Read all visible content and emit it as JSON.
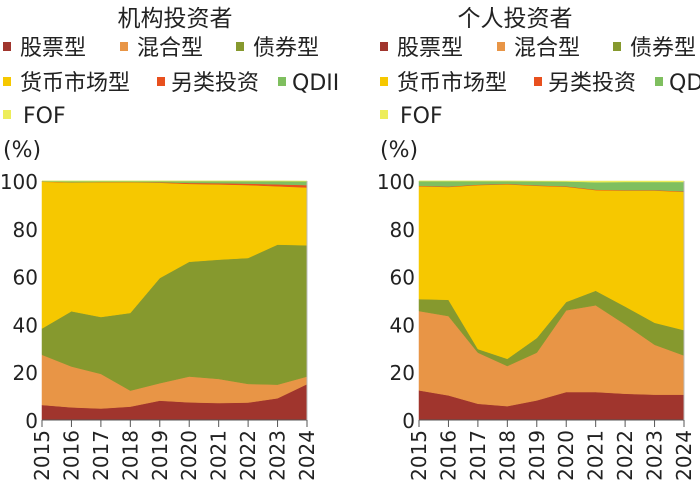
{
  "chart_data": [
    {
      "type": "area",
      "stacked": true,
      "title": "机构投资者",
      "ylabel": "(%)",
      "ylim": [
        0,
        100
      ],
      "yticks": [
        "0",
        "20",
        "40",
        "60",
        "80",
        "100"
      ],
      "categories": [
        "2015",
        "2016",
        "2017",
        "2018",
        "2019",
        "2020",
        "2021",
        "2022",
        "2023",
        "2024"
      ],
      "legend_position": "top",
      "grid": false,
      "series": [
        {
          "name": "股票型",
          "color": "#a0352d",
          "values": [
            6.3,
            5.3,
            4.8,
            5.6,
            8.1,
            7.4,
            7.1,
            7.3,
            9.1,
            15.0
          ]
        },
        {
          "name": "混合型",
          "color": "#e89546",
          "values": [
            21.0,
            17.1,
            14.5,
            6.7,
            7.3,
            10.8,
            10.1,
            7.8,
            5.7,
            3.2
          ]
        },
        {
          "name": "债券型",
          "color": "#86992e",
          "values": [
            11.0,
            23.1,
            23.8,
            32.5,
            44.0,
            48.0,
            49.9,
            52.7,
            58.6,
            54.9
          ]
        },
        {
          "name": "货币市场型",
          "color": "#f6c800",
          "values": [
            61.4,
            53.9,
            56.4,
            54.7,
            39.9,
            32.6,
            31.5,
            30.5,
            24.4,
            24.2
          ]
        },
        {
          "name": "另类投资",
          "color": "#e8501e",
          "values": [
            0.1,
            0.1,
            0.1,
            0.1,
            0.2,
            0.4,
            0.5,
            0.6,
            0.8,
            1.0
          ]
        },
        {
          "name": "QDII",
          "color": "#7fbf5f",
          "values": [
            0.2,
            0.5,
            0.4,
            0.4,
            0.5,
            0.8,
            0.9,
            1.1,
            1.4,
            1.6
          ]
        },
        {
          "name": "FOF",
          "color": "#eded5a",
          "values": [
            0,
            0,
            0,
            0,
            0,
            0,
            0,
            0,
            0,
            0.1
          ]
        }
      ]
    },
    {
      "type": "area",
      "stacked": true,
      "title": "个人投资者",
      "ylabel": "(%)",
      "ylim": [
        0,
        100
      ],
      "yticks": [
        "0",
        "20",
        "40",
        "60",
        "80",
        "100"
      ],
      "categories": [
        "2015",
        "2016",
        "2017",
        "2018",
        "2019",
        "2020",
        "2021",
        "2022",
        "2023",
        "2024"
      ],
      "legend_position": "top",
      "grid": false,
      "series": [
        {
          "name": "股票型",
          "color": "#a0352d",
          "values": [
            12.4,
            10.3,
            6.8,
            5.8,
            8.2,
            11.7,
            11.7,
            11.0,
            10.6,
            10.6
          ]
        },
        {
          "name": "混合型",
          "color": "#e89546",
          "values": [
            33.2,
            33.2,
            21.4,
            16.8,
            20.0,
            34.2,
            36.3,
            29.0,
            20.9,
            16.4
          ]
        },
        {
          "name": "债券型",
          "color": "#86992e",
          "values": [
            5.0,
            6.8,
            1.5,
            3.0,
            6.1,
            3.5,
            6.1,
            7.5,
            9.2,
            10.6
          ]
        },
        {
          "name": "货币市场型",
          "color": "#f6c800",
          "values": [
            47.2,
            47.2,
            68.6,
            73.0,
            63.7,
            48.2,
            42.1,
            48.5,
            55.3,
            57.9
          ]
        },
        {
          "name": "另类投资",
          "color": "#e8501e",
          "values": [
            0.2,
            0.2,
            0.2,
            0.2,
            0.2,
            0.2,
            0.2,
            0.2,
            0.2,
            0.2
          ]
        },
        {
          "name": "QDII",
          "color": "#7fbf5f",
          "values": [
            2.0,
            2.3,
            1.5,
            1.2,
            1.7,
            2.0,
            3.1,
            3.4,
            3.4,
            3.9
          ]
        },
        {
          "name": "FOF",
          "color": "#eded5a",
          "values": [
            0,
            0,
            0,
            0,
            0.1,
            0.2,
            0.5,
            0.4,
            0.4,
            0.4
          ]
        }
      ]
    }
  ]
}
